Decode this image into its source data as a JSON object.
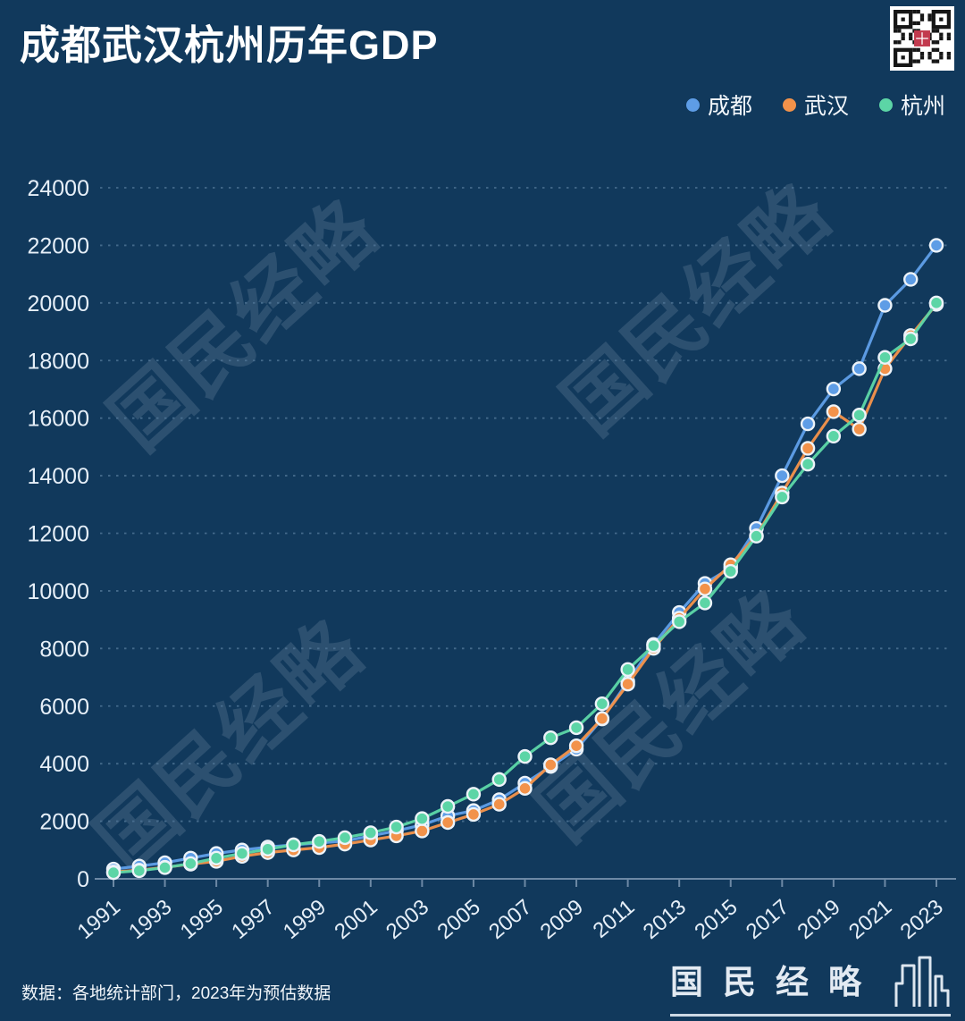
{
  "header": {
    "title": "成都武汉杭州历年GDP"
  },
  "legend": {
    "items": [
      "成都",
      "武汉",
      "杭州"
    ]
  },
  "watermark": {
    "text": "国民经略"
  },
  "footer": {
    "source_note": "数据：各地统计部门，2023年为预估数据",
    "brand": "国民经略"
  },
  "chart_data": {
    "type": "line",
    "title": "成都武汉杭州历年GDP",
    "xlabel": "",
    "ylabel": "",
    "x": [
      1991,
      1992,
      1993,
      1994,
      1995,
      1996,
      1997,
      1998,
      1999,
      2000,
      2001,
      2002,
      2003,
      2004,
      2005,
      2006,
      2007,
      2008,
      2009,
      2010,
      2011,
      2012,
      2013,
      2014,
      2015,
      2016,
      2017,
      2018,
      2019,
      2020,
      2021,
      2022,
      2023
    ],
    "series": [
      {
        "name": "成都",
        "color": "#5e9de6",
        "values": [
          340,
          443,
          561,
          721,
          881,
          1001,
          1103,
          1181,
          1250,
          1313,
          1492,
          1667,
          1871,
          2186,
          2371,
          2750,
          3324,
          3901,
          4503,
          5551,
          6854,
          8139,
          9250,
          10260,
          10800,
          12170,
          14000,
          15800,
          17013,
          17717,
          19917,
          20818,
          22000
        ]
      },
      {
        "name": "武汉",
        "color": "#f2924a",
        "values": [
          240,
          300,
          400,
          510,
          607,
          782,
          912,
          1002,
          1086,
          1207,
          1348,
          1493,
          1662,
          1956,
          2238,
          2590,
          3142,
          3960,
          4621,
          5566,
          6762,
          8004,
          9051,
          10070,
          10906,
          11913,
          13400,
          14950,
          16223,
          15616,
          17717,
          18866,
          19950
        ]
      },
      {
        "name": "杭州",
        "color": "#5cd5a6",
        "values": [
          215,
          281,
          390,
          530,
          720,
          880,
          1030,
          1180,
          1300,
          1430,
          1600,
          1800,
          2092,
          2515,
          2940,
          3450,
          4250,
          4900,
          5250,
          6080,
          7270,
          8100,
          8930,
          9580,
          10680,
          11900,
          13260,
          14400,
          15373,
          16106,
          18109,
          18753,
          20000
        ]
      }
    ],
    "ylim": [
      0,
      24000
    ],
    "ytick_step": 2000,
    "ytick_labels": [
      "0",
      "2000",
      "4000",
      "6000",
      "8000",
      "10000",
      "12000",
      "14000",
      "16000",
      "18000",
      "20000",
      "22000",
      "24000"
    ],
    "xtick_labels": [
      "1991",
      "1993",
      "1995",
      "1997",
      "1999",
      "2001",
      "2003",
      "2005",
      "2007",
      "2009",
      "2011",
      "2013",
      "2015",
      "2017",
      "2019",
      "2021",
      "2023"
    ],
    "grid": "horizontal-dotted",
    "legend_position": "top-right",
    "note": "2023年为预估数据"
  }
}
